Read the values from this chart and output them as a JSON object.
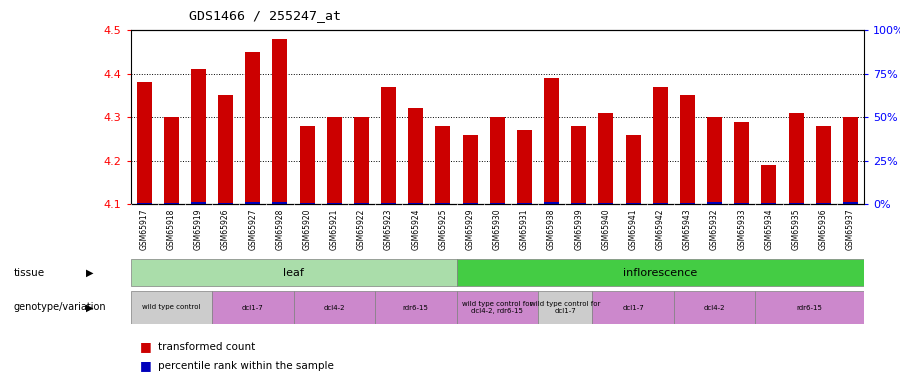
{
  "title": "GDS1466 / 255247_at",
  "samples": [
    "GSM65917",
    "GSM65918",
    "GSM65919",
    "GSM65926",
    "GSM65927",
    "GSM65928",
    "GSM65920",
    "GSM65921",
    "GSM65922",
    "GSM65923",
    "GSM65924",
    "GSM65925",
    "GSM65929",
    "GSM65930",
    "GSM65931",
    "GSM65938",
    "GSM65939",
    "GSM65940",
    "GSM65941",
    "GSM65942",
    "GSM65943",
    "GSM65932",
    "GSM65933",
    "GSM65934",
    "GSM65935",
    "GSM65936",
    "GSM65937"
  ],
  "transformed_count": [
    4.38,
    4.3,
    4.41,
    4.35,
    4.45,
    4.48,
    4.28,
    4.3,
    4.3,
    4.37,
    4.32,
    4.28,
    4.26,
    4.3,
    4.27,
    4.39,
    4.28,
    4.31,
    4.26,
    4.37,
    4.35,
    4.3,
    4.29,
    4.19,
    4.31,
    4.28,
    4.3
  ],
  "percentile_pct": [
    5,
    5,
    8,
    5,
    8,
    8,
    5,
    5,
    5,
    5,
    5,
    5,
    5,
    5,
    5,
    8,
    5,
    5,
    5,
    5,
    5,
    8,
    5,
    5,
    5,
    5,
    8
  ],
  "ymin": 4.1,
  "ymax": 4.5,
  "yticks": [
    4.1,
    4.2,
    4.3,
    4.4,
    4.5
  ],
  "right_yticks": [
    0,
    25,
    50,
    75,
    100
  ],
  "right_yticklabels": [
    "0%",
    "25%",
    "50%",
    "75%",
    "100%"
  ],
  "bar_color": "#cc0000",
  "percentile_color": "#0000bb",
  "tissue_leaf_color": "#aaddaa",
  "tissue_inf_color": "#44cc44",
  "tissue_label_leaf": "leaf",
  "tissue_label_inf": "inflorescence",
  "tissue_leaf_count": 12,
  "geno_groups": [
    {
      "label": "wild type control",
      "start": 0,
      "end": 3,
      "color": "#cccccc"
    },
    {
      "label": "dcl1-7",
      "start": 3,
      "end": 6,
      "color": "#cc88cc"
    },
    {
      "label": "dcl4-2",
      "start": 6,
      "end": 9,
      "color": "#cc88cc"
    },
    {
      "label": "rdr6-15",
      "start": 9,
      "end": 12,
      "color": "#cc88cc"
    },
    {
      "label": "wild type control for\ndcl4-2, rdr6-15",
      "start": 12,
      "end": 15,
      "color": "#cc88cc"
    },
    {
      "label": "wild type control for\ndcl1-7",
      "start": 15,
      "end": 17,
      "color": "#cccccc"
    },
    {
      "label": "dcl1-7",
      "start": 17,
      "end": 20,
      "color": "#cc88cc"
    },
    {
      "label": "dcl4-2",
      "start": 20,
      "end": 23,
      "color": "#cc88cc"
    },
    {
      "label": "rdr6-15",
      "start": 23,
      "end": 27,
      "color": "#cc88cc"
    }
  ],
  "legend_items": [
    {
      "label": "transformed count",
      "color": "#cc0000"
    },
    {
      "label": "percentile rank within the sample",
      "color": "#0000bb"
    }
  ],
  "xtick_bg": "#cccccc"
}
